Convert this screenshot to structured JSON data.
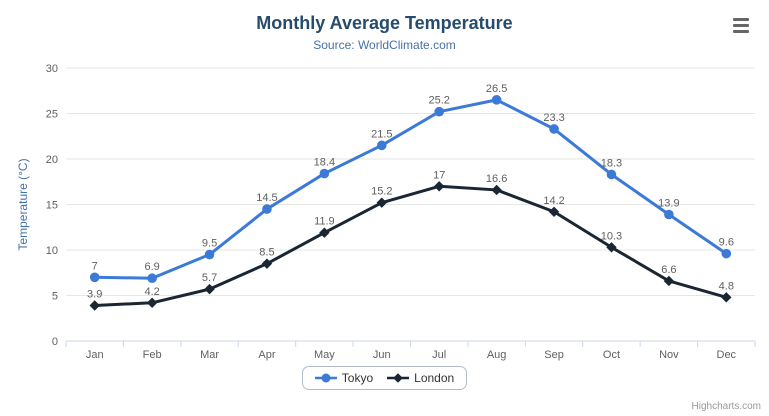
{
  "chart_data": {
    "type": "line",
    "title": "Monthly Average Temperature",
    "subtitle": "Source: WorldClimate.com",
    "categories": [
      "Jan",
      "Feb",
      "Mar",
      "Apr",
      "May",
      "Jun",
      "Jul",
      "Aug",
      "Sep",
      "Oct",
      "Nov",
      "Dec"
    ],
    "series": [
      {
        "name": "Tokyo",
        "color": "#3b7ad7",
        "marker": "circle",
        "values": [
          7,
          6.9,
          9.5,
          14.5,
          18.4,
          21.5,
          25.2,
          26.5,
          23.3,
          18.3,
          13.9,
          9.6
        ]
      },
      {
        "name": "London",
        "color": "#1a2633",
        "marker": "diamond",
        "values": [
          3.9,
          4.2,
          5.7,
          8.5,
          11.9,
          15.2,
          17,
          16.6,
          14.2,
          10.3,
          6.6,
          4.8
        ]
      }
    ],
    "xlabel": "",
    "ylabel": "Temperature (°C)",
    "ylim": [
      0,
      30
    ],
    "ytick_step": 5,
    "grid": true,
    "data_labels": true,
    "legend_position": "bottom-center"
  },
  "styles": {
    "title_color": "#274b6d",
    "subtitle_color": "#4572a7",
    "axis_label_color": "#606060",
    "data_label_color": "#606060",
    "grid_color": "#e6e6e6",
    "axis_line_color": "#ccd6eb",
    "legend_text_color": "#333333",
    "background": "#ffffff"
  },
  "credits": {
    "label": "Highcharts.com"
  }
}
